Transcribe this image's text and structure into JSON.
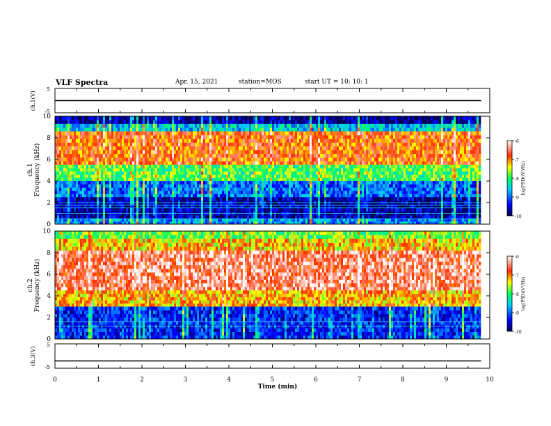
{
  "header": {
    "title": "VLF Spectra",
    "date": "Apr. 15, 2021",
    "station": "station=MOS",
    "start": "start UT = 10: 10: 1"
  },
  "colors": {
    "spectrogram_scale": [
      "#000050",
      "#0000ff",
      "#00c8ff",
      "#00ff60",
      "#ffff00",
      "#ff3000",
      "#ffffff"
    ]
  },
  "chart_data": [
    {
      "type": "line",
      "panel": "ch1-voltage",
      "ylabel": "ch.1(V)",
      "ylim": [
        -5,
        5
      ],
      "yticks": [
        5,
        -5
      ],
      "xlim": [
        0,
        10
      ],
      "series": [
        {
          "x": [
            0,
            9.8
          ],
          "y": [
            0,
            0
          ]
        }
      ]
    },
    {
      "type": "heatmap",
      "panel": "ch1-spectrogram",
      "ylabel": "ch.1 Frequency (kHz)",
      "ylim": [
        0,
        10
      ],
      "yticks": [
        0,
        2,
        4,
        6,
        8,
        10
      ],
      "xlim": [
        0,
        10
      ],
      "data_end_min": 9.8,
      "colorbar": {
        "label": "log(PSD)(V²/Hz)",
        "range": [
          -10,
          -6
        ],
        "ticks": [
          -6,
          -7,
          -8,
          -9,
          -10
        ]
      },
      "bands_kHz": [
        {
          "lo": 9.3,
          "hi": 10.0,
          "level": -9.8
        },
        {
          "lo": 8.6,
          "hi": 9.3,
          "level": -8.6
        },
        {
          "lo": 5.5,
          "hi": 8.6,
          "level": -6.9
        },
        {
          "lo": 4.0,
          "hi": 5.5,
          "level": -7.9
        },
        {
          "lo": 2.5,
          "hi": 4.0,
          "level": -9.0
        },
        {
          "lo": 0.5,
          "hi": 2.5,
          "level": -9.7
        },
        {
          "lo": 0.0,
          "hi": 0.5,
          "level": -8.8
        }
      ],
      "hlines_kHz": [
        2.0,
        1.75,
        1.5,
        1.0,
        0.5
      ]
    },
    {
      "type": "heatmap",
      "panel": "ch2-spectrogram",
      "ylabel": "ch.2 Frequency (kHz)",
      "ylim": [
        0,
        10
      ],
      "yticks": [
        0,
        2,
        4,
        6,
        8,
        10
      ],
      "xlim": [
        0,
        10
      ],
      "data_end_min": 9.8,
      "colorbar": {
        "label": "log(PSD)(V²/Hz)",
        "range": [
          -10,
          -6
        ],
        "ticks": [
          -6,
          -7,
          -8,
          -9,
          -10
        ]
      },
      "bands_kHz": [
        {
          "lo": 9.3,
          "hi": 10.0,
          "level": -7.8
        },
        {
          "lo": 8.2,
          "hi": 9.3,
          "level": -7.3
        },
        {
          "lo": 4.5,
          "hi": 8.2,
          "level": -6.5
        },
        {
          "lo": 3.0,
          "hi": 4.5,
          "level": -7.2
        },
        {
          "lo": 0.0,
          "hi": 3.0,
          "level": -9.3
        }
      ],
      "hlines_kHz": [
        1.6,
        1.2
      ]
    },
    {
      "type": "line",
      "panel": "ch3-voltage",
      "ylabel": "ch.3(V)",
      "xlabel": "Time (min)",
      "ylim": [
        -5,
        5
      ],
      "yticks": [
        5,
        -5
      ],
      "xlim": [
        0,
        10
      ],
      "xticks": [
        0,
        1,
        2,
        3,
        4,
        5,
        6,
        7,
        8,
        9,
        10
      ],
      "series": [
        {
          "x": [
            0,
            9.8
          ],
          "y": [
            -2,
            -2
          ]
        }
      ]
    }
  ]
}
